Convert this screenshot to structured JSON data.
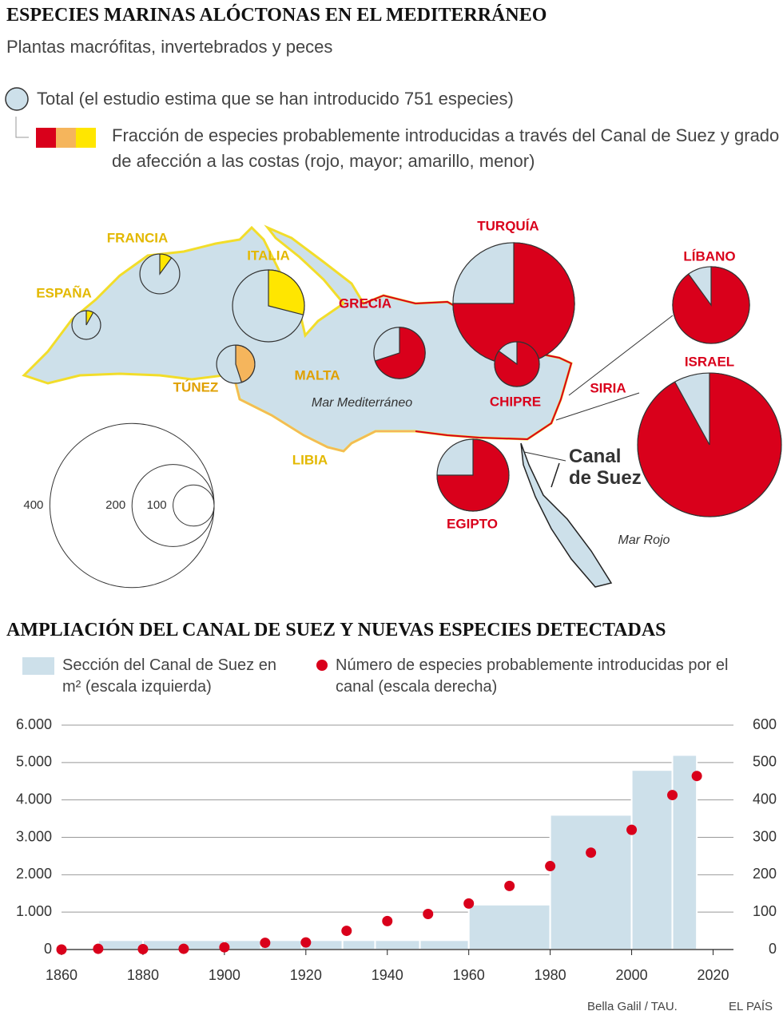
{
  "chart_data": [
    {
      "type": "pie",
      "title": "ESPECIES MARINAS ALÓCTONAS EN EL MEDITERRÁNEO",
      "subtitle": "Plantas macrófitas, invertebrados y peces",
      "legend_total": "Total (el estudio estima que se han introducido 751 especies)",
      "legend_fraction": "Fracción de especies probablemente introducidas a través del Canal de Suez y grado de afección a las costas (rojo, mayor; amarillo, menor)",
      "pies": [
        {
          "name": "ESPAÑA",
          "total": 70,
          "suez_share": 8,
          "color": "#ffe600",
          "label_color": "#e3b800"
        },
        {
          "name": "FRANCIA",
          "total": 97,
          "suez_share": 10,
          "color": "#ffe600",
          "label_color": "#e3b800"
        },
        {
          "name": "ITALIA",
          "total": 175,
          "suez_share": 29,
          "color": "#ffe600",
          "label_color": "#e3b800"
        },
        {
          "name": "TÚNEZ",
          "total": 93,
          "suez_share": 45,
          "color": "#f5b55c",
          "label_color": "#e0a000"
        },
        {
          "name": "GRECIA",
          "total": 125,
          "suez_share": 70,
          "color": "#d9001b",
          "label_color": "#d9001b"
        },
        {
          "name": "TURQUÍA",
          "total": 296,
          "suez_share": 75,
          "color": "#d9001b",
          "label_color": "#d9001b"
        },
        {
          "name": "CHIPRE",
          "total": 109,
          "suez_share": 85,
          "color": "#d9001b",
          "label_color": "#d9001b"
        },
        {
          "name": "EGIPTO",
          "total": 175,
          "suez_share": 75,
          "color": "#d9001b",
          "label_color": "#d9001b"
        },
        {
          "name": "LÍBANO",
          "total": 187,
          "suez_share": 90,
          "color": "#d9001b",
          "label_color": "#d9001b"
        },
        {
          "name": "ISRAEL",
          "total": 350,
          "suez_share": 92,
          "color": "#d9001b",
          "label_color": "#d9001b"
        }
      ],
      "labels": [
        {
          "text": "MALTA",
          "color": "#e0a000"
        },
        {
          "text": "LIBIA",
          "color": "#e3b800"
        },
        {
          "text": "SIRIA",
          "color": "#d9001b"
        }
      ],
      "sea_labels": [
        "Mar Mediterráneo",
        "Mar Rojo"
      ],
      "canal_label": "Canal de Suez",
      "size_legend": [
        400,
        200,
        100
      ]
    },
    {
      "type": "histogram",
      "title": "AMPLIACIÓN DEL CANAL DE SUEZ Y NUEVAS ESPECIES DETECTADAS",
      "bins": [
        1869,
        1880,
        1900,
        1909,
        1919,
        1929,
        1937,
        1948,
        1960,
        1980,
        2000,
        2010,
        2016
      ],
      "series": [
        {
          "name": "Sección del Canal de Suez en m² (escala izquierda)",
          "color": "#cde0ea",
          "values": [
            250,
            250,
            250,
            250,
            250,
            250,
            250,
            250,
            1200,
            3600,
            4800,
            5200
          ]
        },
        {
          "name": "Número de especies probablemente introducidas por el canal (escala derecha)",
          "color": "#d9001b",
          "axis": "y2",
          "x": [
            1860,
            1869,
            1880,
            1890,
            1900,
            1910,
            1920,
            1930,
            1940,
            1950,
            1960,
            1970,
            1980,
            1990,
            2000,
            2010,
            2016
          ],
          "values": [
            0,
            2,
            1,
            2,
            6,
            18,
            19,
            50,
            76,
            95,
            123,
            170,
            223,
            259,
            320,
            413,
            464
          ]
        }
      ],
      "xlim": [
        1860,
        2025
      ],
      "xticks": [
        1860,
        1880,
        1900,
        1920,
        1940,
        1960,
        1980,
        2000,
        2020
      ],
      "ylim": [
        0,
        6000
      ],
      "yticks": [
        0,
        {
          "value": 1000,
          "label": "1.000"
        },
        {
          "value": 2000,
          "label": "2.000"
        },
        {
          "value": 3000,
          "label": "3.000"
        },
        {
          "value": 4000,
          "label": "4.000"
        },
        {
          "value": 5000,
          "label": "5.000"
        },
        {
          "value": 6000,
          "label": "6.000"
        }
      ],
      "y2lim": [
        0,
        600
      ],
      "y2ticks": [
        0,
        100,
        200,
        300,
        400,
        500,
        600
      ],
      "grid": true,
      "source": "Bella Galil / TAU.",
      "credit": "EL PAÍS"
    }
  ]
}
